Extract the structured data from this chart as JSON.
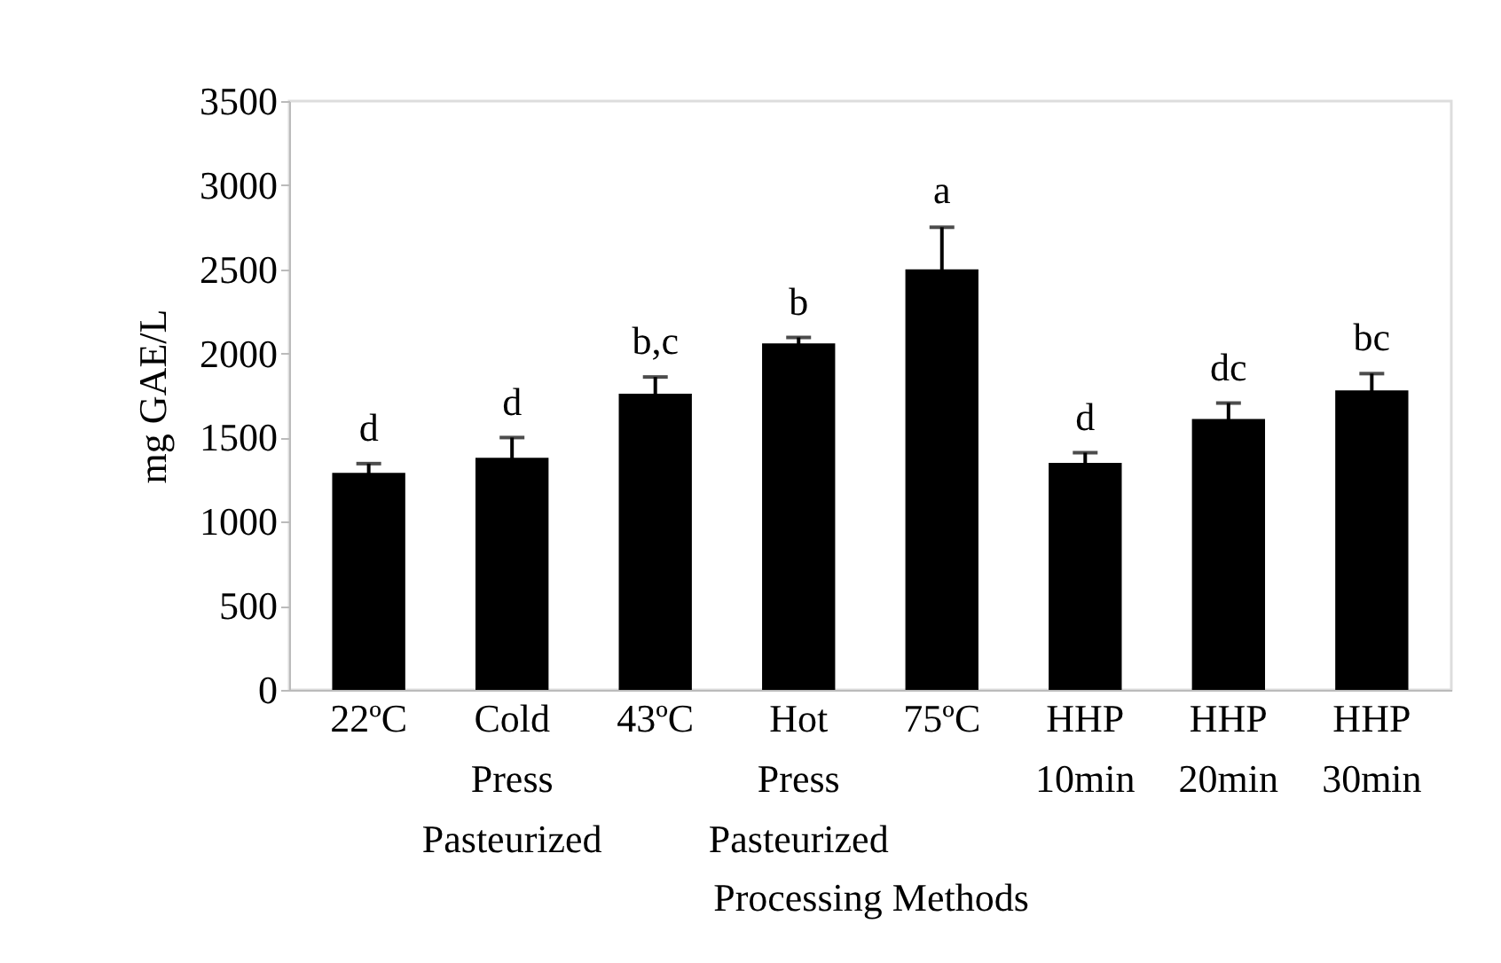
{
  "chart_data": {
    "type": "bar",
    "xlabel": "Processing Methods",
    "ylabel": "mg GAE/L",
    "categories": [
      "22ºC",
      "Cold Press Pasteurized",
      "43ºC",
      "Hot Press Pasteurized",
      "75ºC",
      "HHP 10min",
      "HHP 20min",
      "HHP 30min"
    ],
    "values": [
      1290,
      1380,
      1760,
      2060,
      2500,
      1350,
      1610,
      1780
    ],
    "errors": [
      55,
      120,
      100,
      35,
      250,
      60,
      95,
      100
    ],
    "color": "#000000",
    "ylim": [
      0,
      3500
    ],
    "yticks": [
      0,
      500,
      1000,
      1500,
      2000,
      2500,
      3000,
      3500
    ],
    "grid": false,
    "annotations": [
      {
        "text": "d",
        "x": "22ºC",
        "y": 1345
      },
      {
        "text": "d",
        "x": "Cold Press Pasteurized",
        "y": 1495
      },
      {
        "text": "b,c",
        "x": "43ºC",
        "y": 1860
      },
      {
        "text": "b",
        "x": "Hot Press Pasteurized",
        "y": 2090
      },
      {
        "text": "a",
        "x": "75ºC",
        "y": 2755
      },
      {
        "text": "d",
        "x": "HHP 10min",
        "y": 1410
      },
      {
        "text": "dc",
        "x": "HHP 20min",
        "y": 1705
      },
      {
        "text": "bc",
        "x": "HHP 30min",
        "y": 1880
      }
    ]
  }
}
